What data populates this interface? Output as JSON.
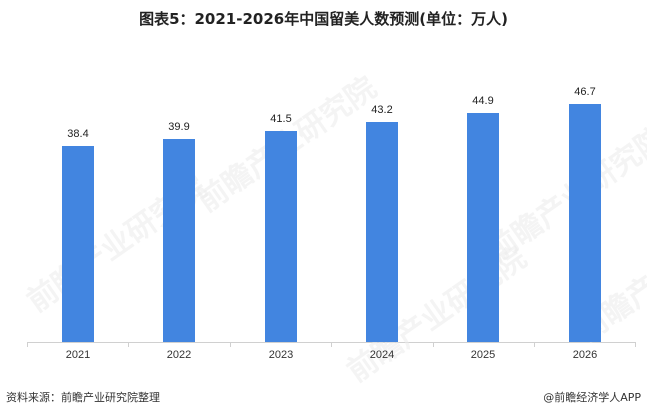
{
  "title": "图表5：2021-2026年中国留美人数预测(单位：万人)",
  "source": "资料来源：前瞻产业研究院整理",
  "credit": "@前瞻经济学人APP",
  "watermark": "前瞻产业研究院",
  "colors": {
    "bar": "#4285e0",
    "axis": "#d0d0d0",
    "text": "#222222"
  },
  "chart_data": {
    "type": "bar",
    "title": "图表5：2021-2026年中国留美人数预测(单位：万人)",
    "xlabel": "",
    "ylabel": "",
    "unit": "万人",
    "categories": [
      "2021",
      "2022",
      "2023",
      "2024",
      "2025",
      "2026"
    ],
    "values": [
      38.4,
      39.9,
      41.5,
      43.2,
      44.9,
      46.7
    ],
    "value_labels": [
      "38.4",
      "39.9",
      "41.5",
      "43.2",
      "44.9",
      "46.7"
    ],
    "ylim": [
      0,
      46.7
    ],
    "grid": false,
    "legend": null,
    "y_axis_visible": false
  }
}
